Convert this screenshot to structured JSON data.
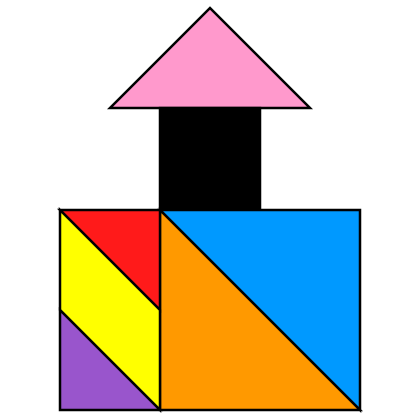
{
  "figure": {
    "description_visible_text": "",
    "pieces": [
      {
        "name": "pink-triangle",
        "shape": "triangle",
        "color": "#ff99cc"
      },
      {
        "name": "black-square",
        "shape": "square",
        "color": "#000000"
      },
      {
        "name": "blue-triangle",
        "shape": "triangle",
        "color": "#0099ff"
      },
      {
        "name": "orange-triangle",
        "shape": "triangle",
        "color": "#ff9900"
      },
      {
        "name": "red-triangle",
        "shape": "triangle",
        "color": "#ff1a1a"
      },
      {
        "name": "yellow-parallelogram",
        "shape": "parallelogram",
        "color": "#ffff00"
      },
      {
        "name": "purple-triangle",
        "shape": "triangle",
        "color": "#9955cc"
      }
    ]
  }
}
